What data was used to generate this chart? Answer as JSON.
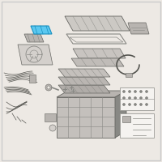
{
  "background_color": "#ede9e4",
  "highlight_color": "#5bc8f0",
  "part_light": "#d4d0cc",
  "part_mid": "#b8b4b0",
  "part_dark": "#888884",
  "part_darker": "#666662",
  "wire_color": "#555550",
  "wire_light": "#888884",
  "label_bg": "#f5f3f0",
  "label_border": "#999994",
  "figsize": [
    2.0,
    2.0
  ],
  "dpi": 100
}
